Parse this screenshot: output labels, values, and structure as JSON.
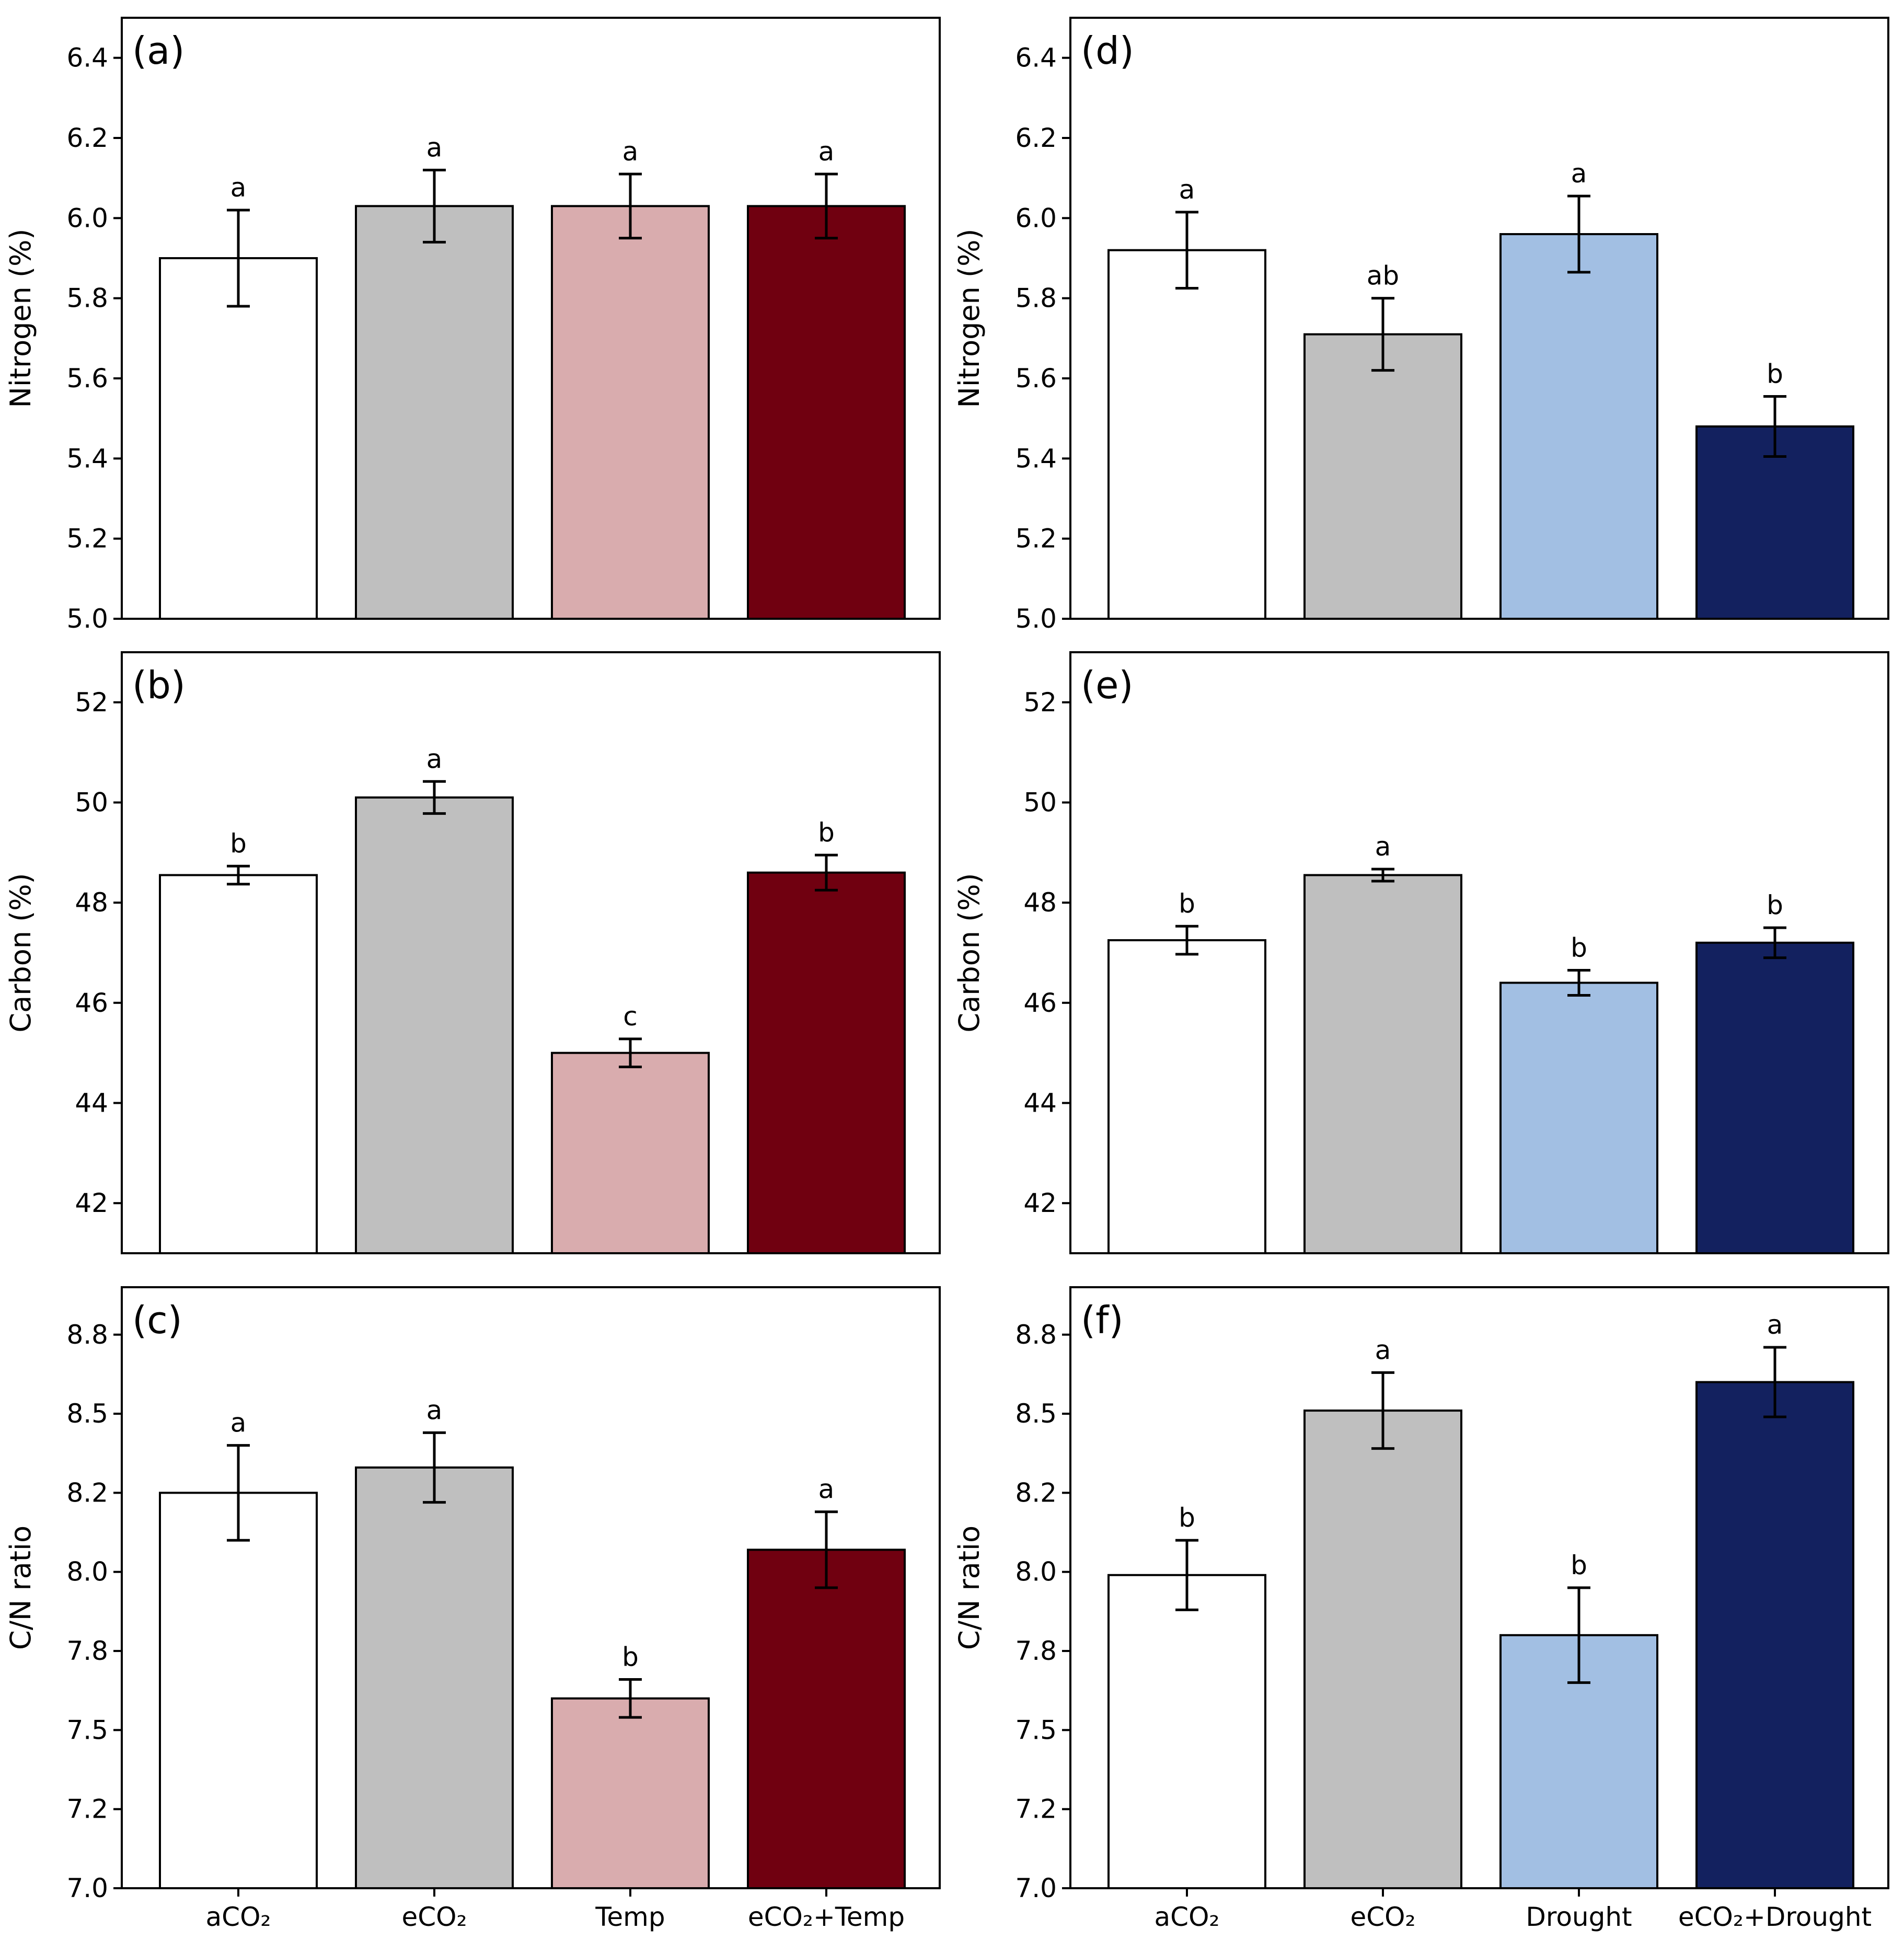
{
  "chart_data": [
    {
      "type": "bar",
      "panel": "(a)",
      "ylabel": "Nitrogen (%)",
      "ylim": [
        5.0,
        6.5
      ],
      "yticks": [
        "5.0",
        "5.2",
        "5.4",
        "5.6",
        "5.8",
        "6.0",
        "6.2",
        "6.4"
      ],
      "categories": [
        "aCO₂",
        "eCO₂",
        "Temp",
        "eCO₂+Temp"
      ],
      "show_categories": false,
      "values": [
        5.9,
        6.03,
        6.03,
        6.03
      ],
      "errors": [
        0.12,
        0.09,
        0.08,
        0.08
      ],
      "letters": [
        "a",
        "a",
        "a",
        "a"
      ],
      "colors": [
        "#ffffff",
        "#bfbfbf",
        "#d9acae",
        "#700010"
      ]
    },
    {
      "type": "bar",
      "panel": "(b)",
      "ylabel": "Carbon (%)",
      "ylim": [
        41.0,
        53.0
      ],
      "yticks": [
        "42",
        "44",
        "46",
        "48",
        "50",
        "52"
      ],
      "categories": [
        "aCO₂",
        "eCO₂",
        "Temp",
        "eCO₂+Temp"
      ],
      "show_categories": false,
      "values": [
        48.55,
        50.1,
        45.0,
        48.6
      ],
      "errors": [
        0.18,
        0.32,
        0.28,
        0.35
      ],
      "letters": [
        "b",
        "a",
        "c",
        "b"
      ],
      "colors": [
        "#ffffff",
        "#bfbfbf",
        "#d9acae",
        "#700010"
      ]
    },
    {
      "type": "bar",
      "panel": "(c)",
      "ylabel": "C/N ratio",
      "ylim": [
        7.0,
        8.9
      ],
      "yticks": [
        "7.0",
        "7.2",
        "7.5",
        "7.8",
        "8.0",
        "8.2",
        "8.5",
        "8.8"
      ],
      "categories": [
        "aCO₂",
        "eCO₂",
        "Temp",
        "eCO₂+Temp"
      ],
      "show_categories": true,
      "values": [
        8.25,
        8.33,
        7.6,
        8.07
      ],
      "errors": [
        0.15,
        0.11,
        0.06,
        0.12
      ],
      "letters": [
        "a",
        "a",
        "b",
        "a"
      ],
      "colors": [
        "#ffffff",
        "#bfbfbf",
        "#d9acae",
        "#700010"
      ]
    },
    {
      "type": "bar",
      "panel": "(d)",
      "ylabel": "Nitrogen (%)",
      "ylim": [
        5.0,
        6.5
      ],
      "yticks": [
        "5.0",
        "5.2",
        "5.4",
        "5.6",
        "5.8",
        "6.0",
        "6.2",
        "6.4"
      ],
      "categories": [
        "aCO₂",
        "eCO₂",
        "Drought",
        "eCO₂+Drought"
      ],
      "show_categories": false,
      "values": [
        5.92,
        5.71,
        5.96,
        5.48
      ],
      "errors": [
        0.095,
        0.09,
        0.095,
        0.075
      ],
      "letters": [
        "a",
        "ab",
        "a",
        "b"
      ],
      "colors": [
        "#ffffff",
        "#bfbfbf",
        "#a2bfe3",
        "#13215f"
      ]
    },
    {
      "type": "bar",
      "panel": "(e)",
      "ylabel": "Carbon (%)",
      "ylim": [
        41.0,
        53.0
      ],
      "yticks": [
        "42",
        "44",
        "46",
        "48",
        "50",
        "52"
      ],
      "categories": [
        "aCO₂",
        "eCO₂",
        "Drought",
        "eCO₂+Drought"
      ],
      "show_categories": false,
      "values": [
        47.25,
        48.55,
        46.4,
        47.2
      ],
      "errors": [
        0.28,
        0.12,
        0.25,
        0.3
      ],
      "letters": [
        "b",
        "a",
        "b",
        "b"
      ],
      "colors": [
        "#ffffff",
        "#bfbfbf",
        "#a2bfe3",
        "#13215f"
      ]
    },
    {
      "type": "bar",
      "panel": "(f)",
      "ylabel": "C/N ratio",
      "ylim": [
        7.0,
        8.9
      ],
      "yticks": [
        "7.0",
        "7.2",
        "7.5",
        "7.8",
        "8.0",
        "8.2",
        "8.5",
        "8.8"
      ],
      "categories": [
        "aCO₂",
        "eCO₂",
        "Drought",
        "eCO₂+Drought"
      ],
      "show_categories": true,
      "values": [
        7.99,
        8.51,
        7.8,
        8.6
      ],
      "errors": [
        0.11,
        0.12,
        0.15,
        0.11
      ],
      "letters": [
        "b",
        "a",
        "b",
        "a"
      ],
      "colors": [
        "#ffffff",
        "#bfbfbf",
        "#a2bfe3",
        "#13215f"
      ]
    }
  ]
}
